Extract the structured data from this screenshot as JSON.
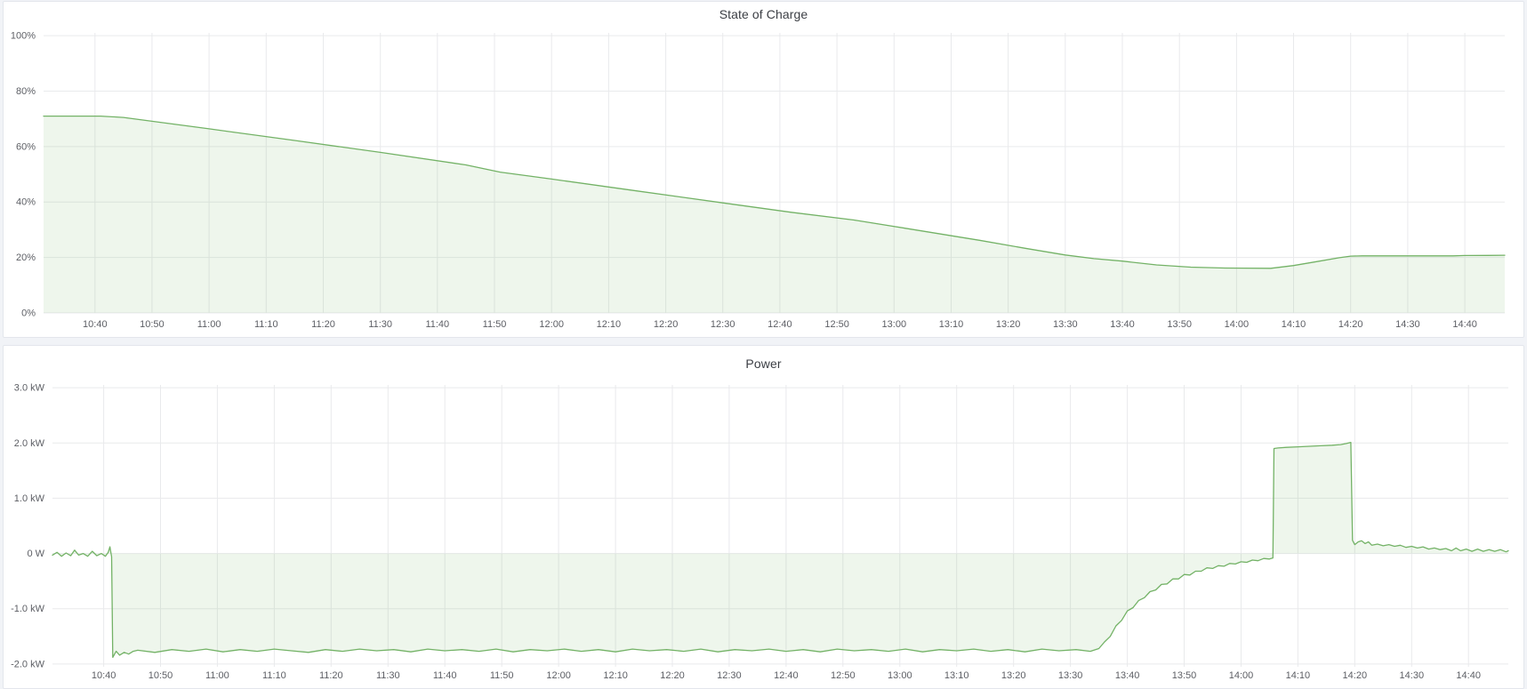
{
  "page": {
    "background_color": "#f1f3f7",
    "panel_background": "#ffffff",
    "panel_border_color": "#e3e6ec"
  },
  "colors": {
    "line_green": "#73b266",
    "fill_green": "rgba(115,178,102,0.12)",
    "grid_line": "#e9eaec",
    "tick_text": "#5c5e64",
    "title_text": "#3c3f45"
  },
  "chart_data": [
    {
      "type": "area",
      "title": "State of Charge",
      "unit": "percent",
      "grid": true,
      "legend": "none",
      "x_range_minutes": [
        631,
        887
      ],
      "ylim": [
        0,
        101
      ],
      "fill_baseline": 0,
      "x_ticks": [
        {
          "t": 640,
          "label": "10:40"
        },
        {
          "t": 650,
          "label": "10:50"
        },
        {
          "t": 660,
          "label": "11:00"
        },
        {
          "t": 670,
          "label": "11:10"
        },
        {
          "t": 680,
          "label": "11:20"
        },
        {
          "t": 690,
          "label": "11:30"
        },
        {
          "t": 700,
          "label": "11:40"
        },
        {
          "t": 710,
          "label": "11:50"
        },
        {
          "t": 720,
          "label": "12:00"
        },
        {
          "t": 730,
          "label": "12:10"
        },
        {
          "t": 740,
          "label": "12:20"
        },
        {
          "t": 750,
          "label": "12:30"
        },
        {
          "t": 760,
          "label": "12:40"
        },
        {
          "t": 770,
          "label": "12:50"
        },
        {
          "t": 780,
          "label": "13:00"
        },
        {
          "t": 790,
          "label": "13:10"
        },
        {
          "t": 800,
          "label": "13:20"
        },
        {
          "t": 810,
          "label": "13:30"
        },
        {
          "t": 820,
          "label": "13:40"
        },
        {
          "t": 830,
          "label": "13:50"
        },
        {
          "t": 840,
          "label": "14:00"
        },
        {
          "t": 850,
          "label": "14:10"
        },
        {
          "t": 860,
          "label": "14:20"
        },
        {
          "t": 870,
          "label": "14:30"
        },
        {
          "t": 880,
          "label": "14:40"
        }
      ],
      "y_ticks": [
        {
          "v": 100,
          "label": "100%"
        },
        {
          "v": 80,
          "label": "80%"
        },
        {
          "v": 60,
          "label": "60%"
        },
        {
          "v": 40,
          "label": "40%"
        },
        {
          "v": 20,
          "label": "20%"
        },
        {
          "v": 0,
          "label": "0%"
        }
      ],
      "series": [
        {
          "name": "State of Charge",
          "points": [
            [
              631,
              71
            ],
            [
              641,
              71
            ],
            [
              645,
              70.5
            ],
            [
              660,
              66.4
            ],
            [
              675,
              62.2
            ],
            [
              690,
              57.9
            ],
            [
              705,
              53.4
            ],
            [
              711,
              50.8
            ],
            [
              720,
              48.3
            ],
            [
              735,
              44.0
            ],
            [
              750,
              39.7
            ],
            [
              762,
              36.3
            ],
            [
              773,
              33.5
            ],
            [
              783,
              30.2
            ],
            [
              795,
              26.2
            ],
            [
              803,
              23.3
            ],
            [
              810,
              20.9
            ],
            [
              815,
              19.6
            ],
            [
              820,
              18.7
            ],
            [
              826,
              17.3
            ],
            [
              832,
              16.5
            ],
            [
              838,
              16.2
            ],
            [
              846,
              16.1
            ],
            [
              850,
              17.1
            ],
            [
              854,
              18.5
            ],
            [
              858,
              19.9
            ],
            [
              860,
              20.5
            ],
            [
              862,
              20.6
            ],
            [
              870,
              20.6
            ],
            [
              878,
              20.6
            ],
            [
              880,
              20.7
            ],
            [
              884,
              20.75
            ],
            [
              887,
              20.8
            ]
          ]
        }
      ]
    },
    {
      "type": "area",
      "title": "Power",
      "unit": "kW",
      "grid": true,
      "legend": "none",
      "x_range_minutes": [
        631,
        887
      ],
      "ylim": [
        -2.05,
        3.05
      ],
      "fill_baseline": 0,
      "x_ticks": [
        {
          "t": 640,
          "label": "10:40"
        },
        {
          "t": 650,
          "label": "10:50"
        },
        {
          "t": 660,
          "label": "11:00"
        },
        {
          "t": 670,
          "label": "11:10"
        },
        {
          "t": 680,
          "label": "11:20"
        },
        {
          "t": 690,
          "label": "11:30"
        },
        {
          "t": 700,
          "label": "11:40"
        },
        {
          "t": 710,
          "label": "11:50"
        },
        {
          "t": 720,
          "label": "12:00"
        },
        {
          "t": 730,
          "label": "12:10"
        },
        {
          "t": 740,
          "label": "12:20"
        },
        {
          "t": 750,
          "label": "12:30"
        },
        {
          "t": 760,
          "label": "12:40"
        },
        {
          "t": 770,
          "label": "12:50"
        },
        {
          "t": 780,
          "label": "13:00"
        },
        {
          "t": 790,
          "label": "13:10"
        },
        {
          "t": 800,
          "label": "13:20"
        },
        {
          "t": 810,
          "label": "13:30"
        },
        {
          "t": 820,
          "label": "13:40"
        },
        {
          "t": 830,
          "label": "13:50"
        },
        {
          "t": 840,
          "label": "14:00"
        },
        {
          "t": 850,
          "label": "14:10"
        },
        {
          "t": 860,
          "label": "14:20"
        },
        {
          "t": 870,
          "label": "14:30"
        },
        {
          "t": 880,
          "label": "14:40"
        }
      ],
      "y_ticks": [
        {
          "v": 3,
          "label": "3.0 kW"
        },
        {
          "v": 2,
          "label": "2.0 kW"
        },
        {
          "v": 1,
          "label": "1.0 kW"
        },
        {
          "v": 0,
          "label": "0 W"
        },
        {
          "v": -1,
          "label": "-1.0 kW"
        },
        {
          "v": -2,
          "label": "-2.0 kW"
        }
      ],
      "series": [
        {
          "name": "Power",
          "points": [
            [
              631,
              -0.03
            ],
            [
              631.8,
              0.02
            ],
            [
              632.6,
              -0.05
            ],
            [
              633.4,
              0.01
            ],
            [
              634.2,
              -0.04
            ],
            [
              634.9,
              0.06
            ],
            [
              635.6,
              -0.03
            ],
            [
              636.4,
              0.0
            ],
            [
              637.2,
              -0.05
            ],
            [
              638.0,
              0.04
            ],
            [
              638.8,
              -0.04
            ],
            [
              639.6,
              0.0
            ],
            [
              640.3,
              -0.05
            ],
            [
              640.8,
              0.02
            ],
            [
              641.1,
              0.12
            ],
            [
              641.4,
              -0.06
            ],
            [
              641.6,
              -1.88
            ],
            [
              642.2,
              -1.77
            ],
            [
              642.8,
              -1.84
            ],
            [
              643.6,
              -1.79
            ],
            [
              644.4,
              -1.82
            ],
            [
              645.2,
              -1.77
            ],
            [
              646,
              -1.75
            ],
            [
              649,
              -1.79
            ],
            [
              652,
              -1.74
            ],
            [
              655,
              -1.77
            ],
            [
              658,
              -1.73
            ],
            [
              661,
              -1.78
            ],
            [
              664,
              -1.74
            ],
            [
              667,
              -1.77
            ],
            [
              670,
              -1.73
            ],
            [
              673,
              -1.76
            ],
            [
              676,
              -1.79
            ],
            [
              679,
              -1.74
            ],
            [
              682,
              -1.77
            ],
            [
              685,
              -1.73
            ],
            [
              688,
              -1.76
            ],
            [
              691,
              -1.74
            ],
            [
              694,
              -1.78
            ],
            [
              697,
              -1.73
            ],
            [
              700,
              -1.76
            ],
            [
              703,
              -1.74
            ],
            [
              706,
              -1.77
            ],
            [
              709,
              -1.73
            ],
            [
              712,
              -1.78
            ],
            [
              715,
              -1.74
            ],
            [
              718,
              -1.76
            ],
            [
              721,
              -1.73
            ],
            [
              724,
              -1.77
            ],
            [
              727,
              -1.74
            ],
            [
              730,
              -1.78
            ],
            [
              733,
              -1.73
            ],
            [
              736,
              -1.76
            ],
            [
              739,
              -1.74
            ],
            [
              742,
              -1.77
            ],
            [
              745,
              -1.73
            ],
            [
              748,
              -1.78
            ],
            [
              751,
              -1.74
            ],
            [
              754,
              -1.76
            ],
            [
              757,
              -1.73
            ],
            [
              760,
              -1.77
            ],
            [
              763,
              -1.74
            ],
            [
              766,
              -1.78
            ],
            [
              769,
              -1.73
            ],
            [
              772,
              -1.76
            ],
            [
              775,
              -1.74
            ],
            [
              778,
              -1.77
            ],
            [
              781,
              -1.73
            ],
            [
              784,
              -1.78
            ],
            [
              787,
              -1.74
            ],
            [
              790,
              -1.76
            ],
            [
              793,
              -1.73
            ],
            [
              796,
              -1.77
            ],
            [
              799,
              -1.74
            ],
            [
              802,
              -1.78
            ],
            [
              805,
              -1.73
            ],
            [
              808,
              -1.76
            ],
            [
              811,
              -1.74
            ],
            [
              813.5,
              -1.77
            ],
            [
              815,
              -1.72
            ],
            [
              816,
              -1.6
            ],
            [
              817,
              -1.5
            ],
            [
              818,
              -1.31
            ],
            [
              819,
              -1.21
            ],
            [
              820,
              -1.04
            ],
            [
              821,
              -0.98
            ],
            [
              822,
              -0.85
            ],
            [
              823,
              -0.8
            ],
            [
              824,
              -0.69
            ],
            [
              825,
              -0.66
            ],
            [
              826,
              -0.56
            ],
            [
              827,
              -0.55
            ],
            [
              828,
              -0.46
            ],
            [
              829,
              -0.46
            ],
            [
              830,
              -0.38
            ],
            [
              831,
              -0.39
            ],
            [
              832,
              -0.32
            ],
            [
              833,
              -0.32
            ],
            [
              834,
              -0.26
            ],
            [
              835,
              -0.27
            ],
            [
              836,
              -0.22
            ],
            [
              837,
              -0.23
            ],
            [
              838,
              -0.18
            ],
            [
              839,
              -0.19
            ],
            [
              840,
              -0.15
            ],
            [
              841,
              -0.16
            ],
            [
              842,
              -0.12
            ],
            [
              843,
              -0.13
            ],
            [
              844,
              -0.09
            ],
            [
              845,
              -0.1
            ],
            [
              845.6,
              -0.08
            ],
            [
              845.8,
              1.9
            ],
            [
              846.5,
              1.91
            ],
            [
              848,
              1.92
            ],
            [
              850,
              1.93
            ],
            [
              852,
              1.94
            ],
            [
              854,
              1.95
            ],
            [
              856,
              1.96
            ],
            [
              857.5,
              1.97
            ],
            [
              858.5,
              1.99
            ],
            [
              859.3,
              2.01
            ],
            [
              859.6,
              0.24
            ],
            [
              860.0,
              0.16
            ],
            [
              860.6,
              0.21
            ],
            [
              861.2,
              0.23
            ],
            [
              861.8,
              0.18
            ],
            [
              862.4,
              0.21
            ],
            [
              863.0,
              0.15
            ],
            [
              864,
              0.17
            ],
            [
              865,
              0.14
            ],
            [
              866,
              0.16
            ],
            [
              867,
              0.13
            ],
            [
              868,
              0.15
            ],
            [
              869,
              0.11
            ],
            [
              870,
              0.13
            ],
            [
              871,
              0.1
            ],
            [
              872,
              0.12
            ],
            [
              873,
              0.08
            ],
            [
              874,
              0.1
            ],
            [
              875,
              0.07
            ],
            [
              876,
              0.09
            ],
            [
              877,
              0.05
            ],
            [
              877.8,
              0.1
            ],
            [
              878.6,
              0.05
            ],
            [
              879.6,
              0.08
            ],
            [
              880.6,
              0.04
            ],
            [
              881.6,
              0.08
            ],
            [
              882.6,
              0.04
            ],
            [
              883.6,
              0.07
            ],
            [
              884.6,
              0.04
            ],
            [
              885.6,
              0.07
            ],
            [
              886.6,
              0.03
            ],
            [
              887,
              0.05
            ]
          ]
        }
      ]
    }
  ]
}
